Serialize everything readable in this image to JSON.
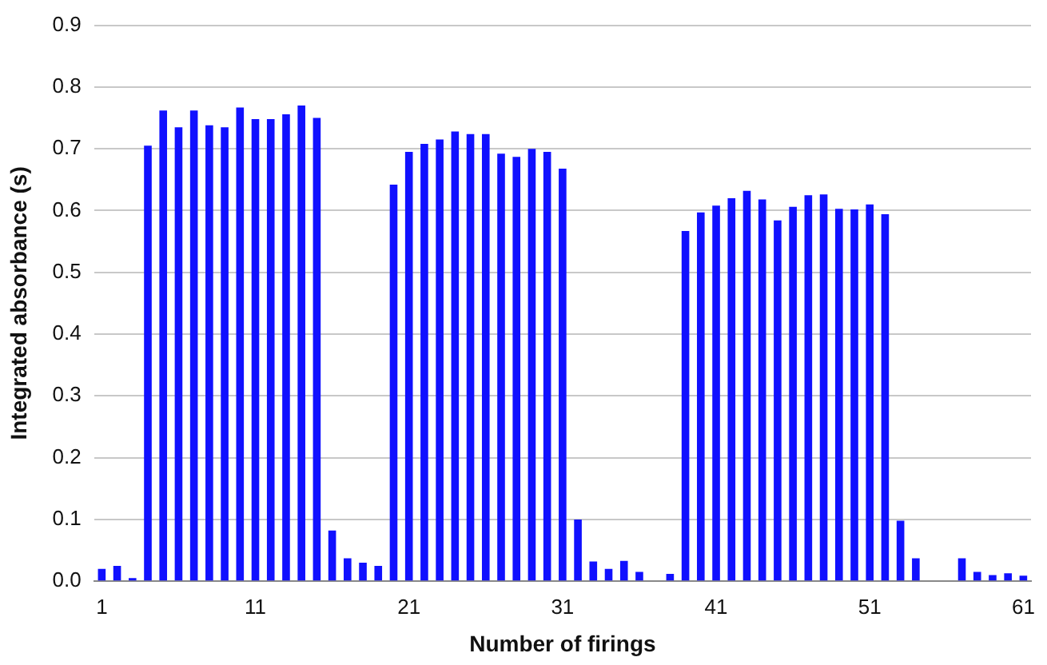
{
  "chart_data": {
    "type": "bar",
    "xlabel": "Number of firings",
    "ylabel": "Integrated absorbance (s)",
    "categories": [
      "1",
      null,
      null,
      null,
      null,
      null,
      null,
      null,
      null,
      null,
      "11",
      null,
      null,
      null,
      null,
      null,
      null,
      null,
      null,
      null,
      "21",
      null,
      null,
      null,
      null,
      null,
      null,
      null,
      null,
      null,
      "31",
      null,
      null,
      null,
      null,
      null,
      null,
      null,
      null,
      null,
      "41",
      null,
      null,
      null,
      null,
      null,
      null,
      null,
      null,
      null,
      "51",
      null,
      null,
      null,
      null,
      null,
      null,
      null,
      null,
      null,
      "61"
    ],
    "values": [
      0.02,
      0.025,
      0.005,
      0.705,
      0.762,
      0.735,
      0.762,
      0.738,
      0.735,
      0.767,
      0.748,
      0.748,
      0.756,
      0.77,
      0.75,
      0.082,
      0.037,
      0.03,
      0.025,
      0.642,
      0.695,
      0.708,
      0.715,
      0.728,
      0.724,
      0.724,
      0.692,
      0.687,
      0.7,
      0.695,
      0.668,
      0.1,
      0.032,
      0.02,
      0.033,
      0.015,
      0,
      0.012,
      0.567,
      0.597,
      0.608,
      0.62,
      0.632,
      0.618,
      0.584,
      0.606,
      0.625,
      0.626,
      0.603,
      0.602,
      0.61,
      0.594,
      0.098,
      0.037,
      0,
      0,
      0.037,
      0.015,
      0.01,
      0.013,
      0.009
    ],
    "color": "#1010ff",
    "ylim": [
      0,
      0.9
    ],
    "yticks": [
      {
        "value": 0,
        "label": "0.0"
      },
      0.1,
      0.2,
      0.3,
      0.4,
      0.5,
      0.6,
      0.7,
      0.8,
      0.9
    ],
    "grid": "y",
    "legend": false
  }
}
